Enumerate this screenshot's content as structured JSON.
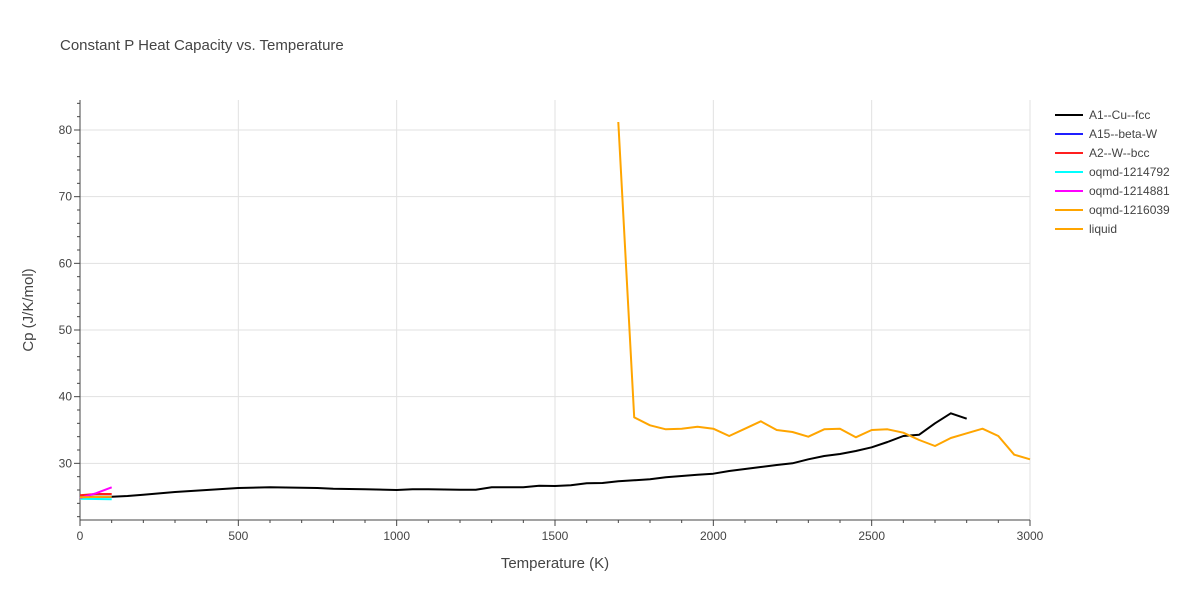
{
  "chart_data": {
    "type": "line",
    "title": "Constant P Heat Capacity vs. Temperature",
    "xlabel": "Temperature (K)",
    "ylabel": "Cp (J/K/mol)",
    "xlim": [
      0,
      3000
    ],
    "ylim": [
      21.5,
      84.5
    ],
    "xticks": [
      0,
      500,
      1000,
      1500,
      2000,
      2500,
      3000
    ],
    "xtick_labels": [
      "0",
      "500",
      "1000",
      "1500",
      "2000",
      "2500",
      "3000"
    ],
    "yticks": [
      30,
      40,
      50,
      60,
      70,
      80
    ],
    "ytick_labels": [
      "30",
      "40",
      "50",
      "60",
      "70",
      "80"
    ],
    "grid": true,
    "legend_position": "top-right",
    "series": [
      {
        "name": "A1--Cu--fcc",
        "color": "#000000",
        "x": [
          0,
          50,
          100,
          150,
          200,
          300,
          400,
          500,
          600,
          700,
          750,
          800,
          900,
          1000,
          1050,
          1100,
          1200,
          1250,
          1300,
          1350,
          1400,
          1450,
          1500,
          1550,
          1600,
          1650,
          1700,
          1750,
          1800,
          1850,
          1900,
          1950,
          2000,
          2050,
          2100,
          2150,
          2200,
          2250,
          2300,
          2350,
          2400,
          2450,
          2500,
          2550,
          2600,
          2650,
          2700,
          2750,
          2800
        ],
        "y": [
          24.9,
          25.0,
          25.0,
          25.1,
          25.3,
          25.7,
          26.0,
          26.3,
          26.4,
          26.35,
          26.3,
          26.2,
          26.1,
          26.0,
          26.1,
          26.1,
          26.05,
          26.05,
          26.4,
          26.4,
          26.4,
          26.65,
          26.6,
          26.7,
          27.0,
          27.05,
          27.3,
          27.45,
          27.6,
          27.9,
          28.1,
          28.3,
          28.45,
          28.85,
          29.15,
          29.45,
          29.75,
          30.0,
          30.6,
          31.1,
          31.4,
          31.85,
          32.4,
          33.2,
          34.1,
          34.3,
          36.0,
          37.5,
          36.7
        ]
      },
      {
        "name": "A15--beta-W",
        "color": "#1f1fff",
        "x": [
          0,
          50,
          100
        ],
        "y": [
          24.8,
          24.9,
          25.0
        ]
      },
      {
        "name": "A2--W--bcc",
        "color": "#ff1f1f",
        "x": [
          0,
          50,
          100
        ],
        "y": [
          25.2,
          25.4,
          25.4
        ]
      },
      {
        "name": "oqmd-1214792",
        "color": "#00ffff",
        "x": [
          0,
          50,
          100
        ],
        "y": [
          24.7,
          24.65,
          24.6
        ]
      },
      {
        "name": "oqmd-1214881",
        "color": "#ff00ff",
        "x": [
          0,
          50,
          100
        ],
        "y": [
          24.8,
          25.5,
          26.4
        ]
      },
      {
        "name": "oqmd-1216039",
        "color": "#ffa500",
        "x": [
          0,
          50,
          100
        ],
        "y": [
          24.9,
          24.95,
          25.0
        ]
      },
      {
        "name": "liquid",
        "color": "#ffa500",
        "x": [
          1700,
          1750,
          1800,
          1850,
          1900,
          1950,
          2000,
          2050,
          2100,
          2150,
          2200,
          2250,
          2300,
          2350,
          2400,
          2450,
          2500,
          2550,
          2600,
          2650,
          2700,
          2750,
          2800,
          2850,
          2900,
          2950,
          3000
        ],
        "y": [
          81.2,
          36.9,
          35.7,
          35.1,
          35.2,
          35.5,
          35.2,
          34.1,
          35.2,
          36.3,
          35.0,
          34.7,
          34.0,
          35.1,
          35.2,
          33.9,
          35.0,
          35.1,
          34.6,
          33.5,
          32.6,
          33.8,
          34.5,
          35.2,
          34.1,
          31.3,
          30.6
        ]
      }
    ]
  }
}
